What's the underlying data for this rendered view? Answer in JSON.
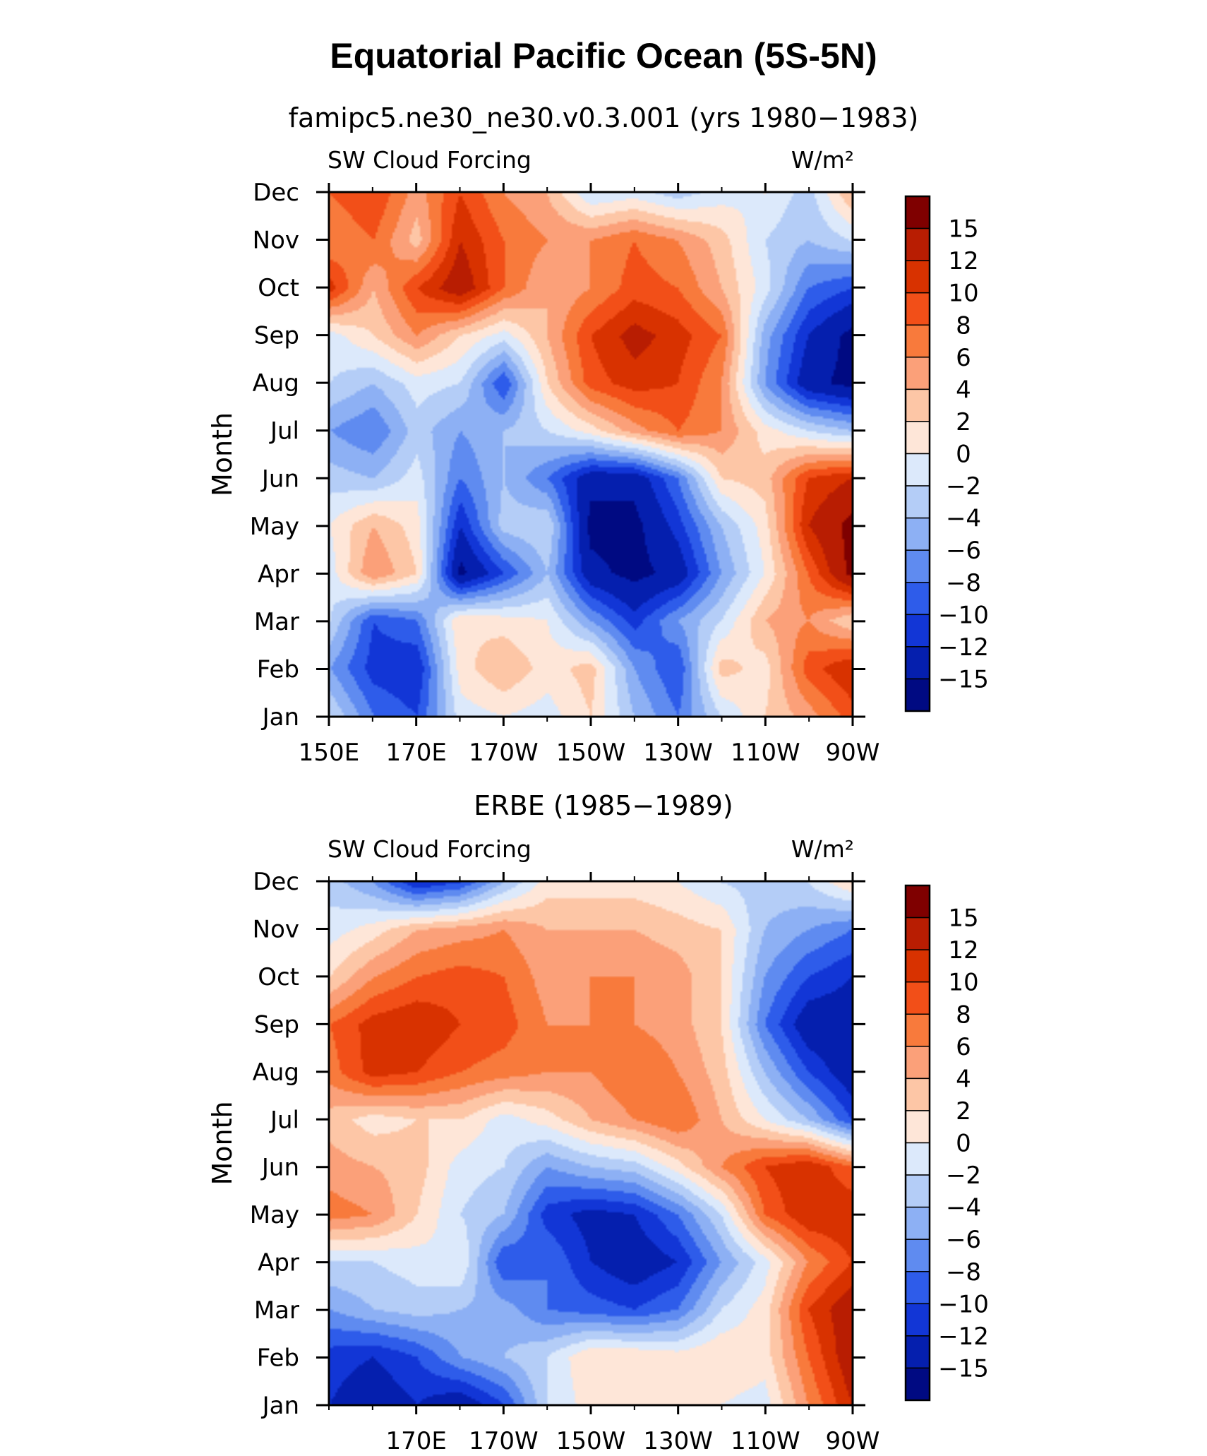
{
  "title": "Equatorial Pacific Ocean (5S-5N)",
  "colorbar": {
    "labels": [
      "15",
      "12",
      "10",
      "8",
      "6",
      "4",
      "2",
      "0",
      "−2",
      "−4",
      "−6",
      "−8",
      "−10",
      "−12",
      "−15"
    ],
    "colors": [
      "#7f0000",
      "#b81d02",
      "#d83200",
      "#f24f18",
      "#f87a3c",
      "#fba079",
      "#fdc6a6",
      "#fee6d8",
      "#dce9fb",
      "#b4cdf7",
      "#8db0f4",
      "#5f8bf0",
      "#2e5cea",
      "#1236d6",
      "#051fae",
      "#000a82"
    ]
  },
  "chart_data": [
    {
      "type": "heatmap",
      "panel_title": "famipc5.ne30_ne30.v0.3.001 (yrs 1980−1983)",
      "left_label": "SW Cloud Forcing",
      "right_label": "W/m²",
      "ylabel": "Month",
      "xlabel": "",
      "x_ticklabels": [
        "150E",
        "170E",
        "170W",
        "150W",
        "130W",
        "110W",
        "90W"
      ],
      "x_tick_lons": [
        150,
        170,
        190,
        210,
        230,
        250,
        270
      ],
      "xlim": [
        150,
        270
      ],
      "y_ticklabels": [
        "Jan",
        "Feb",
        "Mar",
        "Apr",
        "May",
        "Jun",
        "Jul",
        "Aug",
        "Sep",
        "Oct",
        "Nov",
        "Dec"
      ],
      "z_units": "W/m²",
      "x": [
        150,
        160,
        170,
        180,
        190,
        200,
        210,
        220,
        230,
        240,
        250,
        260,
        270
      ],
      "y": [
        "Jan",
        "Feb",
        "Mar",
        "Apr",
        "May",
        "Jun",
        "Jul",
        "Aug",
        "Sep",
        "Oct",
        "Nov",
        "Dec"
      ],
      "z": [
        [
          -2,
          -8,
          -10,
          -1,
          0,
          -1,
          2,
          -4,
          -8,
          -2,
          2,
          5,
          9
        ],
        [
          -6,
          -11,
          -12,
          1,
          4,
          1,
          3,
          -6,
          -10,
          3,
          1,
          9,
          12
        ],
        [
          -2,
          -10,
          -8,
          2,
          1,
          0,
          -6,
          -11,
          -6,
          -2,
          4,
          6,
          2
        ],
        [
          -1,
          6,
          2,
          -16,
          -10,
          -4,
          -14,
          -16,
          -14,
          -6,
          0,
          8,
          16
        ],
        [
          0,
          4,
          1,
          -12,
          -3,
          -2,
          -16,
          -16,
          -11,
          -4,
          1,
          12,
          16
        ],
        [
          -3,
          -4,
          -1,
          -8,
          -4,
          -8,
          -14,
          -14,
          -8,
          2,
          3,
          10,
          12
        ],
        [
          -6,
          -8,
          -3,
          -6,
          -4,
          -2,
          1,
          5,
          8,
          6,
          1,
          -2,
          -4
        ],
        [
          -2,
          -4,
          -1,
          -2,
          -10,
          2,
          9,
          11,
          10,
          6,
          -6,
          -14,
          -16
        ],
        [
          -1,
          2,
          6,
          2,
          -1,
          4,
          10,
          13,
          11,
          8,
          -5,
          -12,
          -16
        ],
        [
          11,
          4,
          10,
          14,
          8,
          4,
          6,
          9,
          8,
          4,
          -1,
          -8,
          -10
        ],
        [
          6,
          8,
          3,
          12,
          8,
          6,
          6,
          8,
          6,
          3,
          -2,
          -4,
          -2
        ],
        [
          8,
          10,
          5,
          10,
          6,
          4,
          -2,
          -1,
          -3,
          -1,
          0,
          -3,
          4
        ]
      ]
    },
    {
      "type": "heatmap",
      "panel_title": "ERBE (1985−1989)",
      "left_label": "SW Cloud Forcing",
      "right_label": "W/m²",
      "ylabel": "Month",
      "xlabel": "",
      "x_ticklabels": [
        "170E",
        "170W",
        "150W",
        "130W",
        "110W",
        "90W"
      ],
      "x_tick_lons": [
        170,
        190,
        210,
        230,
        250,
        270
      ],
      "xlim": [
        150,
        270
      ],
      "y_ticklabels": [
        "Jan",
        "Feb",
        "Mar",
        "Apr",
        "May",
        "Jun",
        "Jul",
        "Aug",
        "Sep",
        "Oct",
        "Nov",
        "Dec"
      ],
      "z_units": "W/m²",
      "x": [
        150,
        160,
        170,
        180,
        190,
        200,
        210,
        220,
        230,
        240,
        250,
        260,
        270
      ],
      "y": [
        "Jan",
        "Feb",
        "Mar",
        "Apr",
        "May",
        "Jun",
        "Jul",
        "Aug",
        "Sep",
        "Oct",
        "Nov",
        "Dec"
      ],
      "z": [
        [
          -12,
          -14,
          -12,
          -14,
          -10,
          -2,
          1,
          1,
          1,
          0,
          -1,
          6,
          12
        ],
        [
          -11,
          -12,
          -10,
          -6,
          -4,
          -2,
          2,
          2,
          1,
          2,
          1,
          8,
          14
        ],
        [
          -6,
          -4,
          -3,
          -4,
          -5,
          -8,
          -9,
          -10,
          -8,
          -2,
          1,
          10,
          14
        ],
        [
          -2,
          -2,
          -1,
          0,
          -10,
          -8,
          -12,
          -14,
          -12,
          -6,
          -1,
          6,
          10
        ],
        [
          7,
          6,
          2,
          -2,
          -4,
          -11,
          -13,
          -12,
          -8,
          -2,
          8,
          12,
          12
        ],
        [
          5,
          4,
          3,
          -1,
          -2,
          -6,
          -4,
          -3,
          1,
          6,
          10,
          12,
          8
        ],
        [
          3,
          1,
          2,
          2,
          -1,
          1,
          4,
          6,
          8,
          4,
          0,
          -4,
          -10
        ],
        [
          7,
          11,
          10,
          8,
          7,
          6,
          6,
          8,
          6,
          3,
          -4,
          -10,
          -14
        ],
        [
          8,
          11,
          12,
          10,
          9,
          6,
          6,
          6,
          5,
          2,
          -8,
          -14,
          -14
        ],
        [
          2,
          6,
          8,
          9,
          8,
          5,
          6,
          6,
          5,
          2,
          -6,
          -10,
          -12
        ],
        [
          -1,
          1,
          4,
          5,
          6,
          4,
          4,
          4,
          3,
          2,
          -4,
          -6,
          -8
        ],
        [
          -3,
          -6,
          -12,
          -10,
          -4,
          1,
          1,
          1,
          0,
          -2,
          -3,
          -2,
          2
        ]
      ]
    }
  ]
}
